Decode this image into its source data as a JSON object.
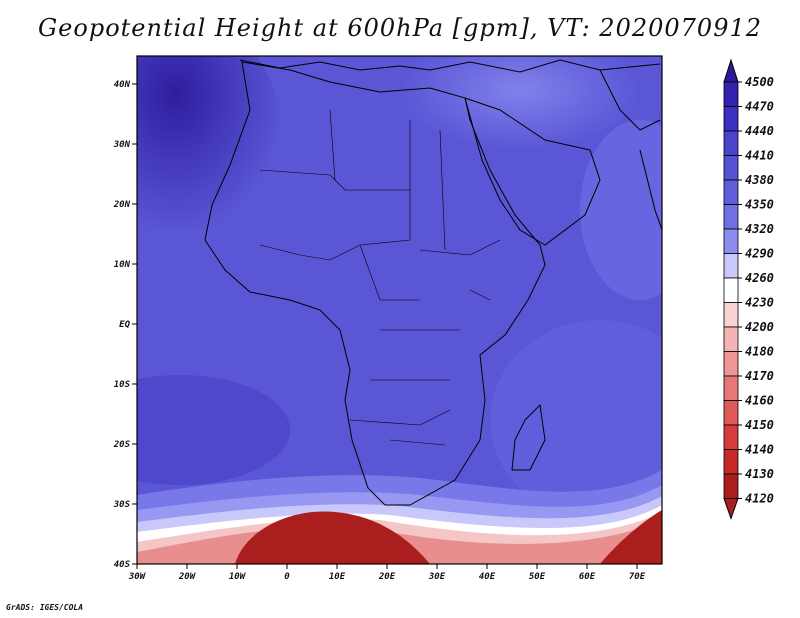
{
  "title": "Geopotential Height at 600hPa [gpm], VT: 2020070912",
  "footer": "GrADS: IGES/COLA",
  "map": {
    "lon_range": [
      -30,
      75
    ],
    "lat_range": [
      -40,
      45
    ],
    "lat_ticks": [
      "40N",
      "30N",
      "20N",
      "10N",
      "EQ",
      "10S",
      "20S",
      "30S",
      "40S"
    ],
    "lon_ticks": [
      "30W",
      "20W",
      "10W",
      "0",
      "10E",
      "20E",
      "30E",
      "40E",
      "50E",
      "60E",
      "70E"
    ],
    "background_color": "#5b58d8",
    "coast_color": "#000000"
  },
  "colorbar": {
    "levels": [
      "4500",
      "4470",
      "4440",
      "4410",
      "4380",
      "4350",
      "4320",
      "4290",
      "4260",
      "4230",
      "4200",
      "4180",
      "4170",
      "4160",
      "4150",
      "4140",
      "4130",
      "4120"
    ],
    "colors": [
      "#2a1a9a",
      "#3322b0",
      "#3c30c0",
      "#4a44cc",
      "#5552d4",
      "#5f5fdc",
      "#7070e4",
      "#8c8cf0",
      "#c8c8fa",
      "#ffffff",
      "#fad2d2",
      "#f5b4b4",
      "#f09696",
      "#e87878",
      "#e05a5a",
      "#d63c3c",
      "#c82828",
      "#aa1e1e"
    ]
  }
}
